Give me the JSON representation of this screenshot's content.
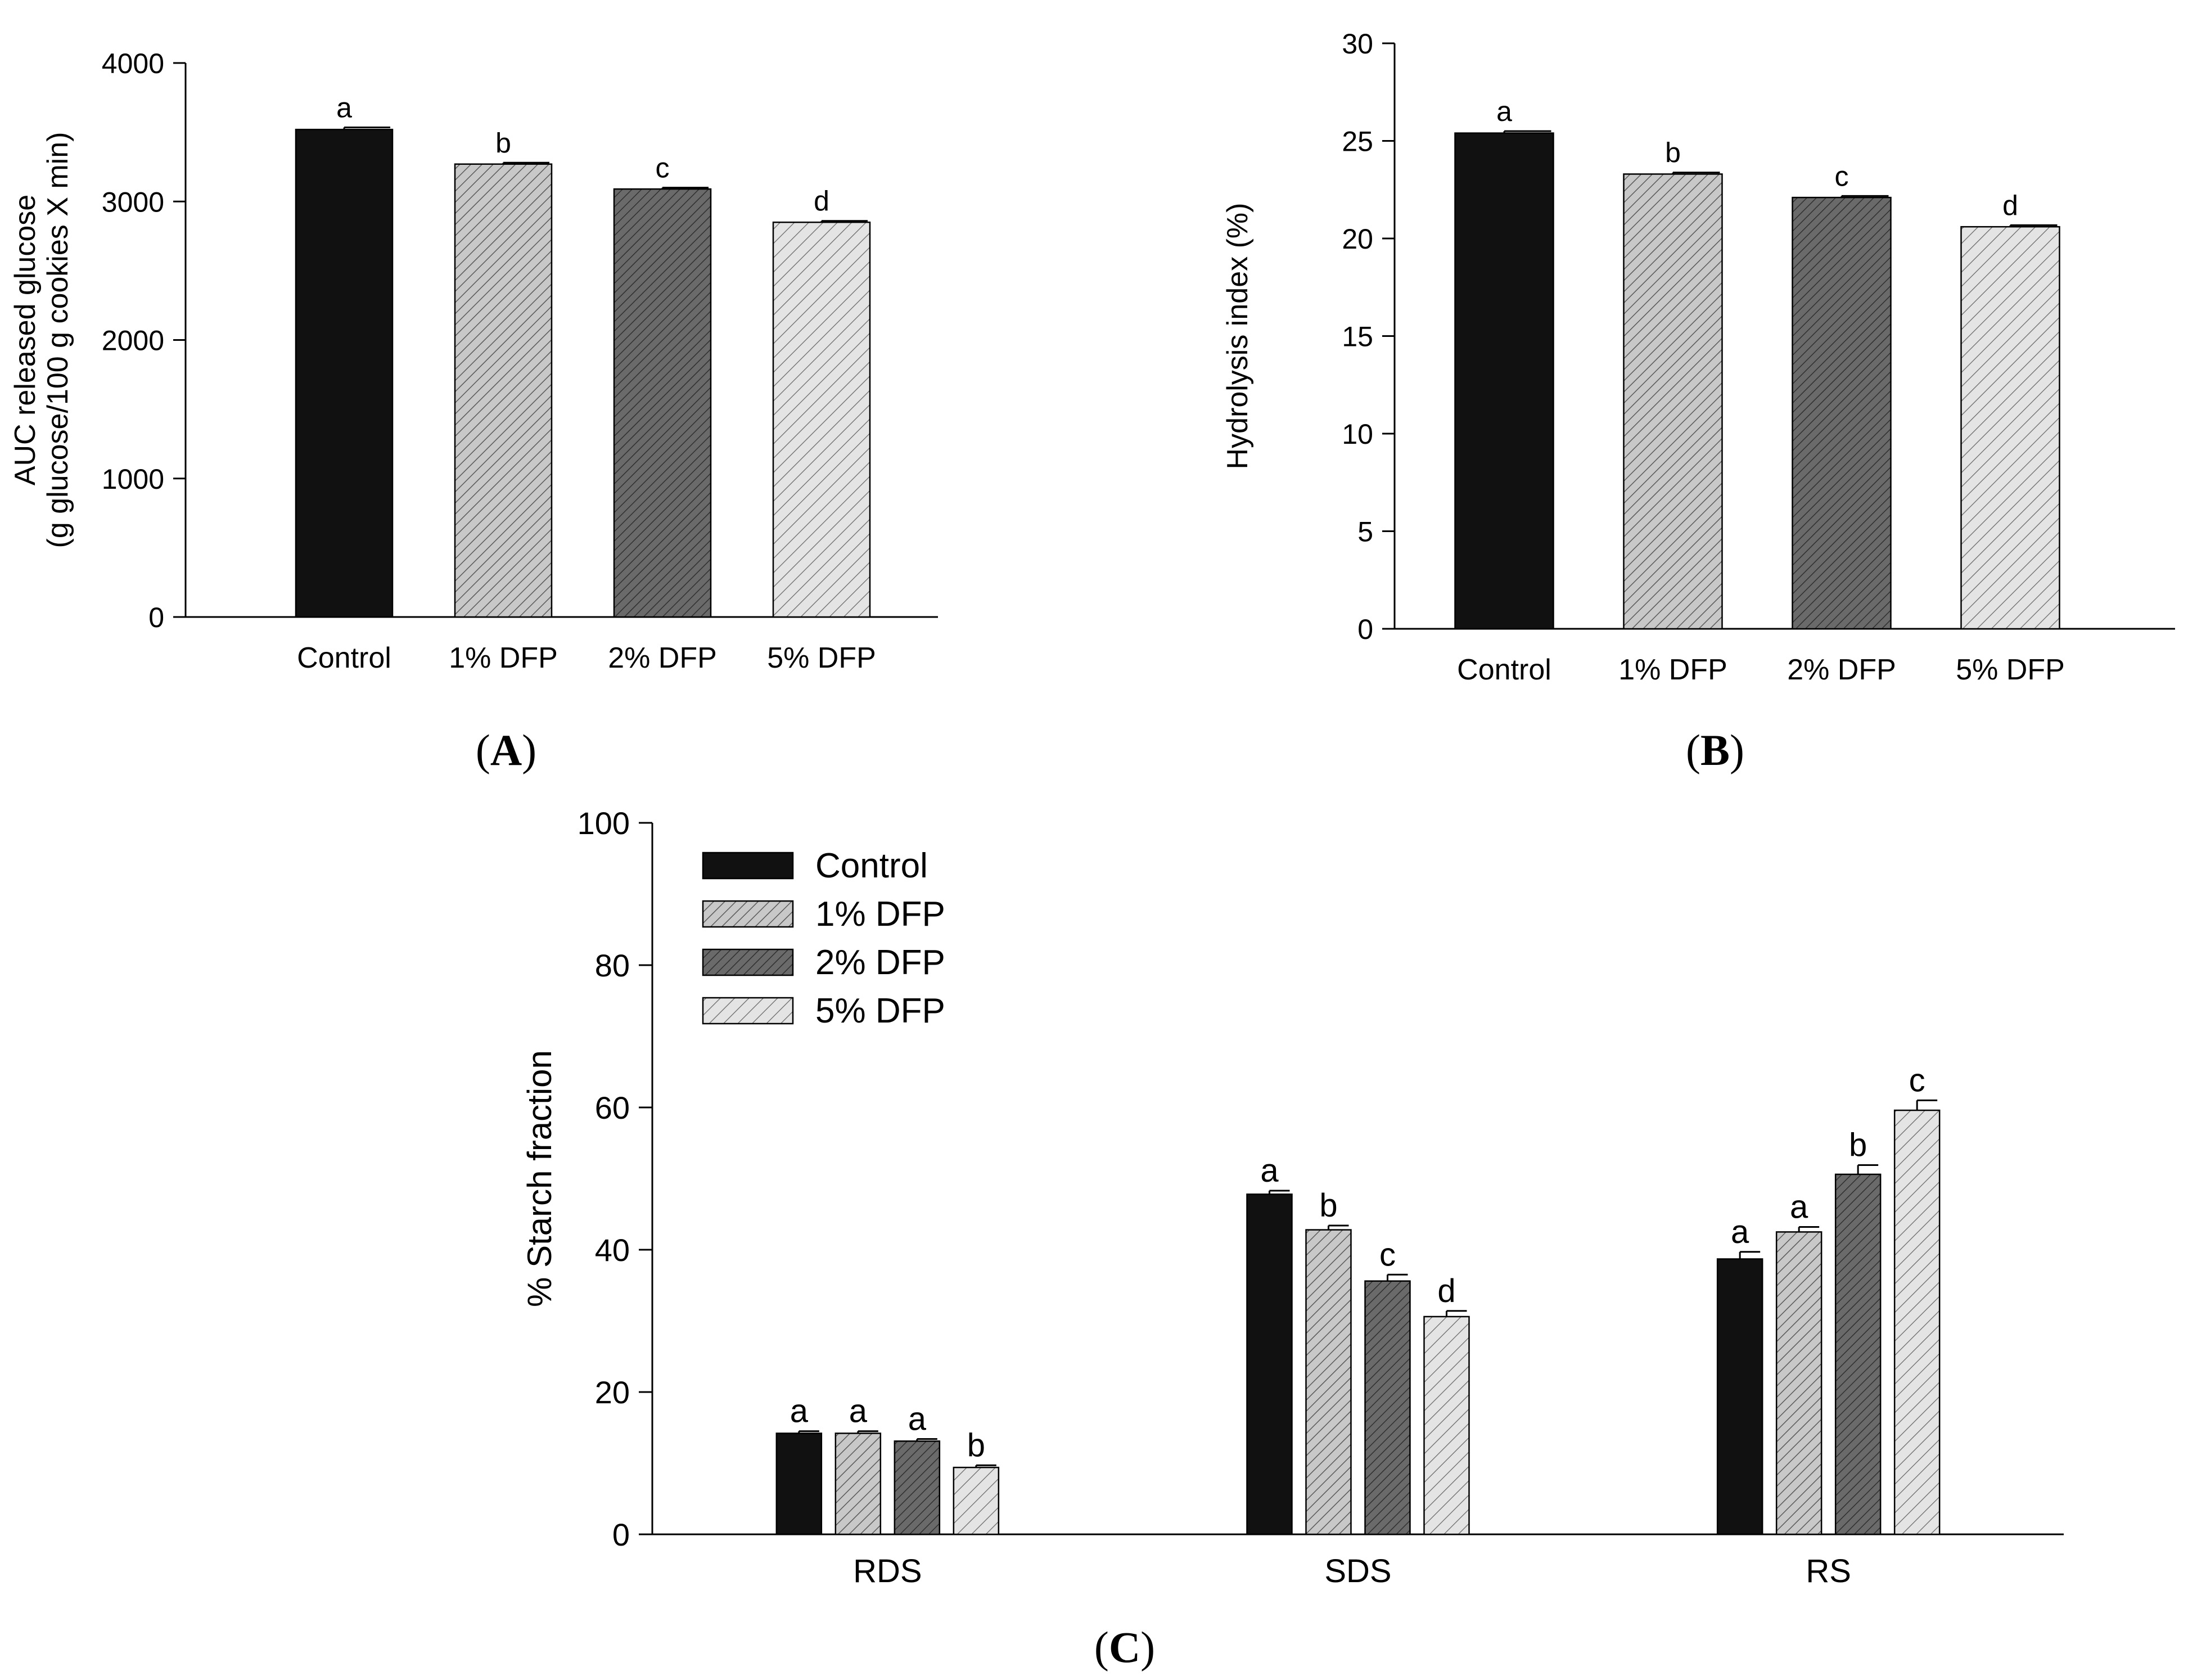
{
  "colors": {
    "control": "#111111",
    "dfp1": "#c8c8c8",
    "dfp2": "#6a6a6a",
    "dfp5": "#e4e4e4",
    "hatch": "#000000",
    "axis": "#000000"
  },
  "chart_data": [
    {
      "id": "A",
      "type": "bar",
      "panel_label_open": "(",
      "panel_label_letter": "A",
      "panel_label_close": ")",
      "title": "",
      "xlabel": "",
      "ylabel_lines": [
        "AUC released glucose",
        "(g glucose/100 g cookies X min)"
      ],
      "ylim": [
        0,
        4000
      ],
      "yticks": [
        0,
        1000,
        2000,
        3000,
        4000
      ],
      "categories": [
        "Control",
        "1% DFP",
        "2% DFP",
        "5% DFP"
      ],
      "values": [
        3520,
        3270,
        3090,
        2850
      ],
      "errors": [
        15,
        10,
        10,
        10
      ],
      "significance": [
        "a",
        "b",
        "c",
        "d"
      ],
      "grid": false
    },
    {
      "id": "B",
      "type": "bar",
      "panel_label_open": "(",
      "panel_label_letter": "B",
      "panel_label_close": ")",
      "title": "",
      "xlabel": "",
      "ylabel_lines": [
        "Hydrolysis index (%)"
      ],
      "ylim": [
        0,
        30
      ],
      "yticks": [
        0,
        5,
        10,
        15,
        20,
        25,
        30
      ],
      "categories": [
        "Control",
        "1% DFP",
        "2% DFP",
        "5% DFP"
      ],
      "values": [
        25.4,
        23.3,
        22.1,
        20.6
      ],
      "errors": [
        0.1,
        0.08,
        0.08,
        0.08
      ],
      "significance": [
        "a",
        "b",
        "c",
        "d"
      ],
      "grid": false
    },
    {
      "id": "C",
      "type": "bar",
      "panel_label_open": "(",
      "panel_label_letter": "C",
      "panel_label_close": ")",
      "title": "",
      "xlabel": "",
      "ylabel_lines": [
        "% Starch fraction"
      ],
      "ylim": [
        0,
        100
      ],
      "yticks": [
        0,
        20,
        40,
        60,
        80,
        100
      ],
      "categories": [
        "RDS",
        "SDS",
        "RS"
      ],
      "legend_position": "top-left",
      "series": [
        {
          "name": "Control",
          "values": [
            14.2,
            47.8,
            38.7
          ],
          "errors": [
            0.3,
            0.5,
            1.0
          ],
          "significance": [
            "a",
            "a",
            "a"
          ]
        },
        {
          "name": "1% DFP",
          "values": [
            14.2,
            42.8,
            42.5
          ],
          "errors": [
            0.3,
            0.6,
            0.7
          ],
          "significance": [
            "a",
            "b",
            "a"
          ]
        },
        {
          "name": "2% DFP",
          "values": [
            13.1,
            35.6,
            50.6
          ],
          "errors": [
            0.3,
            0.9,
            1.3
          ],
          "significance": [
            "a",
            "c",
            "b"
          ]
        },
        {
          "name": "5% DFP",
          "values": [
            9.4,
            30.6,
            59.6
          ],
          "errors": [
            0.3,
            0.8,
            1.4
          ],
          "significance": [
            "b",
            "d",
            "c"
          ]
        }
      ],
      "grid": false
    }
  ]
}
